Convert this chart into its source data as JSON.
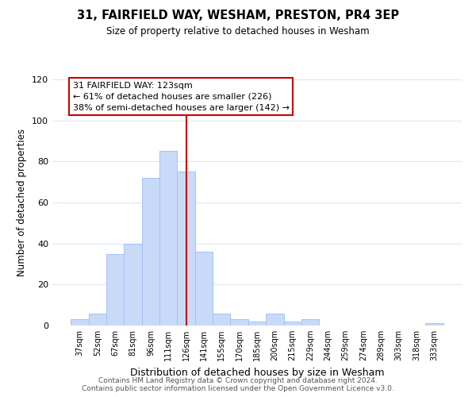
{
  "title": "31, FAIRFIELD WAY, WESHAM, PRESTON, PR4 3EP",
  "subtitle": "Size of property relative to detached houses in Wesham",
  "xlabel": "Distribution of detached houses by size in Wesham",
  "ylabel": "Number of detached properties",
  "bar_labels": [
    "37sqm",
    "52sqm",
    "67sqm",
    "81sqm",
    "96sqm",
    "111sqm",
    "126sqm",
    "141sqm",
    "155sqm",
    "170sqm",
    "185sqm",
    "200sqm",
    "215sqm",
    "229sqm",
    "244sqm",
    "259sqm",
    "274sqm",
    "289sqm",
    "303sqm",
    "318sqm",
    "333sqm"
  ],
  "bar_values": [
    3,
    6,
    35,
    40,
    72,
    85,
    75,
    36,
    6,
    3,
    2,
    6,
    2,
    3,
    0,
    0,
    0,
    0,
    0,
    0,
    1
  ],
  "bar_color": "#c9daf8",
  "bar_edge_color": "#a4c2f4",
  "vline_x_index": 6,
  "vline_color": "#cc0000",
  "annotation_title": "31 FAIRFIELD WAY: 123sqm",
  "annotation_line1": "← 61% of detached houses are smaller (226)",
  "annotation_line2": "38% of semi-detached houses are larger (142) →",
  "annotation_box_color": "#ffffff",
  "annotation_box_edge": "#cc0000",
  "ylim": [
    0,
    120
  ],
  "yticks": [
    0,
    20,
    40,
    60,
    80,
    100,
    120
  ],
  "footer1": "Contains HM Land Registry data © Crown copyright and database right 2024.",
  "footer2": "Contains public sector information licensed under the Open Government Licence v3.0.",
  "background_color": "#ffffff",
  "grid_color": "#dde8f0"
}
